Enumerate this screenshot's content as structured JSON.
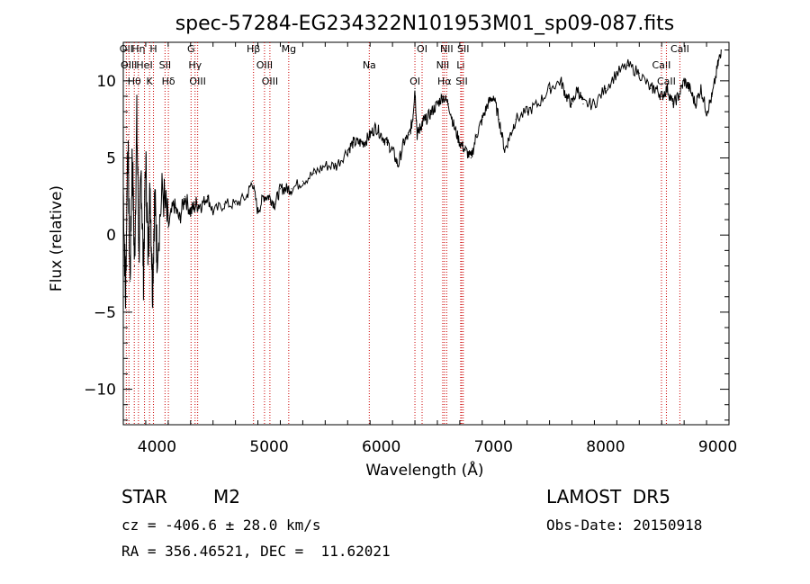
{
  "chart_data": {
    "type": "line",
    "title": "spec-57284-EG234322N101953M01_sp09-087.fits",
    "xlabel": "Wavelength (Å)",
    "ylabel": "Flux (relative)",
    "xlim": [
      3700,
      9100
    ],
    "ylim": [
      -12.3,
      12.5
    ],
    "xticks": [
      4000,
      5000,
      6000,
      7000,
      8000,
      9000
    ],
    "yticks": [
      -10,
      -5,
      0,
      5,
      10
    ],
    "grid": false,
    "line_color": "#000000",
    "marker_color": "#cc0000",
    "series": [
      {
        "x": [
          3700,
          3720,
          3740,
          3760,
          3780,
          3800,
          3820,
          3840,
          3860,
          3880,
          3900,
          3920,
          3940,
          3960,
          3980,
          4000,
          4050,
          4100,
          4150,
          4200,
          4250,
          4300,
          4350,
          4400,
          4450,
          4500,
          4600,
          4700,
          4800,
          4850,
          4900,
          4950,
          5000,
          5050,
          5100,
          5150,
          5200,
          5300,
          5400,
          5500,
          5600,
          5700,
          5750,
          5800,
          5850,
          5900,
          5950,
          6000,
          6050,
          6100,
          6150,
          6200,
          6250,
          6280,
          6300,
          6320,
          6350,
          6380,
          6400,
          6450,
          6500,
          6550,
          6600,
          6650,
          6700,
          6750,
          6800,
          6850,
          6900,
          6950,
          7000,
          7050,
          7100,
          7150,
          7200,
          7300,
          7400,
          7500,
          7600,
          7650,
          7700,
          7750,
          7800,
          7900,
          8000,
          8100,
          8200,
          8300,
          8400,
          8450,
          8500,
          8550,
          8600,
          8650,
          8700,
          8750,
          8800,
          8850,
          8900,
          8950,
          9000,
          9030
        ],
        "values": [
          3.0,
          -4.0,
          6.5,
          -3.0,
          5.5,
          -2.0,
          7.5,
          -1.0,
          4.0,
          -2.5,
          5.0,
          -1.0,
          3.0,
          -3.5,
          2.5,
          -1.0,
          3.0,
          0.5,
          2.0,
          1.0,
          2.5,
          1.5,
          2.0,
          2.0,
          2.5,
          1.5,
          2.0,
          2.0,
          2.5,
          3.5,
          1.5,
          2.5,
          2.5,
          2.0,
          3.0,
          3.0,
          3.0,
          3.5,
          4.0,
          4.5,
          4.5,
          5.5,
          6.0,
          6.0,
          6.0,
          6.5,
          7.0,
          6.5,
          6.0,
          5.5,
          4.5,
          6.0,
          6.5,
          7.5,
          9.5,
          6.5,
          7.0,
          7.5,
          7.5,
          8.0,
          8.5,
          9.0,
          8.5,
          7.0,
          6.0,
          5.5,
          5.0,
          6.5,
          7.5,
          8.5,
          9.0,
          7.5,
          5.5,
          6.5,
          7.5,
          8.0,
          8.5,
          9.5,
          10.0,
          9.0,
          8.5,
          9.5,
          8.5,
          8.5,
          9.5,
          10.5,
          11.0,
          10.5,
          9.5,
          9.5,
          9.0,
          9.5,
          8.5,
          9.0,
          10.0,
          9.5,
          8.5,
          9.5,
          8.0,
          9.0,
          11.0,
          12.0
        ]
      }
    ],
    "lines": [
      {
        "x": 3727,
        "label": "OII"
      },
      {
        "x": 3750,
        "label": "OIII"
      },
      {
        "x": 3798,
        "label": "Hθ"
      },
      {
        "x": 3835,
        "label": "Hη"
      },
      {
        "x": 3889,
        "label": "HeI"
      },
      {
        "x": 3934,
        "label": "K"
      },
      {
        "x": 3969,
        "label": "H"
      },
      {
        "x": 4072,
        "label": "SII"
      },
      {
        "x": 4102,
        "label": "Hδ"
      },
      {
        "x": 4304,
        "label": "G"
      },
      {
        "x": 4340,
        "label": "Hγ"
      },
      {
        "x": 4363,
        "label": "OIII"
      },
      {
        "x": 4861,
        "label": "Hβ"
      },
      {
        "x": 4959,
        "label": "OIII"
      },
      {
        "x": 5007,
        "label": "OIII"
      },
      {
        "x": 5175,
        "label": "Mg"
      },
      {
        "x": 5893,
        "label": "Na"
      },
      {
        "x": 6300,
        "label": "OI"
      },
      {
        "x": 6364,
        "label": "OI"
      },
      {
        "x": 6548,
        "label": "NII"
      },
      {
        "x": 6563,
        "label": "Hα"
      },
      {
        "x": 6583,
        "label": "NII"
      },
      {
        "x": 6708,
        "label": "Li"
      },
      {
        "x": 6717,
        "label": "SII"
      },
      {
        "x": 6731,
        "label": "SII"
      },
      {
        "x": 8498,
        "label": "CaII"
      },
      {
        "x": 8542,
        "label": "CaII"
      },
      {
        "x": 8662,
        "label": "CaII"
      }
    ]
  },
  "info": {
    "obj_class": "STAR",
    "subclass": "M2",
    "survey": "LAMOST  DR5",
    "cz": "cz = -406.6 ± 28.0 km/s",
    "obs_date": "Obs-Date: 20150918",
    "radec": "RA = 356.46521, DEC =  11.62021"
  }
}
